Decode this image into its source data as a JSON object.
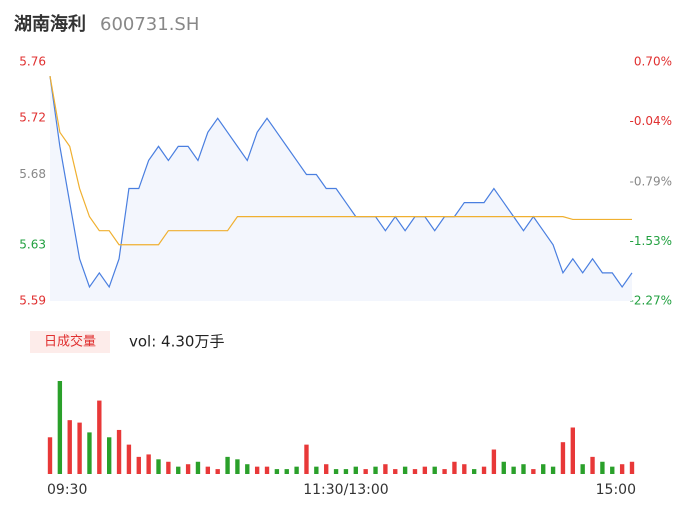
{
  "chart_data": {
    "type": "stock-intraday",
    "title": "湖南海利",
    "subtitle": "600731.SH",
    "categories": [
      "09:30",
      null,
      null,
      null,
      null,
      null,
      null,
      null,
      null,
      null,
      null,
      null,
      null,
      null,
      null,
      null,
      null,
      null,
      null,
      null,
      null,
      null,
      null,
      null,
      null,
      null,
      null,
      null,
      null,
      null,
      "11:30/13:00",
      null,
      null,
      null,
      null,
      null,
      null,
      null,
      null,
      null,
      null,
      null,
      null,
      null,
      null,
      null,
      null,
      null,
      null,
      null,
      null,
      null,
      null,
      null,
      null,
      null,
      null,
      null,
      null,
      "15:00"
    ],
    "series": [
      {
        "name": "price",
        "color": "#4a7fe0",
        "values": [
          5.75,
          5.7,
          5.66,
          5.62,
          5.6,
          5.61,
          5.6,
          5.62,
          5.67,
          5.67,
          5.69,
          5.7,
          5.69,
          5.7,
          5.7,
          5.69,
          5.71,
          5.72,
          5.71,
          5.7,
          5.69,
          5.71,
          5.72,
          5.71,
          5.7,
          5.69,
          5.68,
          5.68,
          5.67,
          5.67,
          5.66,
          5.65,
          5.65,
          5.65,
          5.64,
          5.65,
          5.64,
          5.65,
          5.65,
          5.64,
          5.65,
          5.65,
          5.66,
          5.66,
          5.66,
          5.67,
          5.66,
          5.65,
          5.64,
          5.65,
          5.64,
          5.63,
          5.61,
          5.62,
          5.61,
          5.62,
          5.61,
          5.61,
          5.6,
          5.61
        ]
      },
      {
        "name": "average",
        "color": "#f0b030",
        "values": [
          5.75,
          5.71,
          5.7,
          5.67,
          5.65,
          5.64,
          5.64,
          5.63,
          5.63,
          5.63,
          5.63,
          5.63,
          5.64,
          5.64,
          5.64,
          5.64,
          5.64,
          5.64,
          5.64,
          5.65,
          5.65,
          5.65,
          5.65,
          5.65,
          5.65,
          5.65,
          5.65,
          5.65,
          5.65,
          5.65,
          5.65,
          5.65,
          5.65,
          5.65,
          5.65,
          5.65,
          5.65,
          5.65,
          5.65,
          5.65,
          5.65,
          5.65,
          5.65,
          5.65,
          5.65,
          5.65,
          5.65,
          5.65,
          5.65,
          5.65,
          5.65,
          5.65,
          5.65,
          5.648,
          5.648,
          5.648,
          5.648,
          5.648,
          5.648,
          5.648
        ]
      }
    ],
    "ylim": [
      5.59,
      5.76
    ],
    "yticks": [
      5.59,
      5.63,
      5.68,
      5.72,
      5.76
    ],
    "ytick_colors": [
      "#e03030",
      "#22a040",
      "#888888",
      "#e03030",
      "#e03030"
    ],
    "y2lim": [
      -2.27,
      0.7
    ],
    "y2ticks": [
      {
        "value": -2.27,
        "label": "-2.27%"
      },
      {
        "value": -1.53,
        "label": "-1.53%"
      },
      {
        "value": -0.79,
        "label": "-0.79%"
      },
      {
        "value": -0.04,
        "label": "-0.04%"
      },
      {
        "value": 0.7,
        "label": "0.70%"
      }
    ],
    "y2tick_colors": [
      "#22a040",
      "#22a040",
      "#888888",
      "#e03030",
      "#e03030"
    ],
    "volume_legend": "日成交量",
    "volume_label": "vol: 4.30万手",
    "volume": {
      "values": [
        1500,
        3800,
        2200,
        2100,
        1700,
        3000,
        1500,
        1800,
        1200,
        700,
        800,
        600,
        500,
        300,
        400,
        500,
        300,
        200,
        700,
        600,
        400,
        300,
        300,
        200,
        200,
        300,
        1200,
        300,
        400,
        200,
        200,
        300,
        200,
        300,
        400,
        200,
        300,
        200,
        300,
        300,
        200,
        500,
        400,
        200,
        300,
        1000,
        500,
        300,
        400,
        200,
        400,
        300,
        1300,
        1900,
        400,
        700,
        500,
        300,
        400,
        500
      ],
      "colors": [
        "#e83838",
        "#2aa02a",
        "#e83838",
        "#e83838",
        "#2aa02a",
        "#e83838",
        "#2aa02a",
        "#e83838",
        "#e83838",
        "#e83838",
        "#e83838",
        "#2aa02a",
        "#e83838",
        "#2aa02a",
        "#e83838",
        "#2aa02a",
        "#e83838",
        "#e83838",
        "#2aa02a",
        "#2aa02a",
        "#2aa02a",
        "#e83838",
        "#e83838",
        "#2aa02a",
        "#2aa02a",
        "#2aa02a",
        "#e83838",
        "#2aa02a",
        "#e83838",
        "#2aa02a",
        "#2aa02a",
        "#2aa02a",
        "#e83838",
        "#2aa02a",
        "#e83838",
        "#e83838",
        "#2aa02a",
        "#e83838",
        "#e83838",
        "#2aa02a",
        "#e83838",
        "#e83838",
        "#e83838",
        "#2aa02a",
        "#e83838",
        "#e83838",
        "#2aa02a",
        "#2aa02a",
        "#2aa02a",
        "#e83838",
        "#2aa02a",
        "#2aa02a",
        "#e83838",
        "#e83838",
        "#2aa02a",
        "#e83838",
        "#2aa02a",
        "#2aa02a",
        "#e83838",
        "#e83838"
      ]
    }
  }
}
